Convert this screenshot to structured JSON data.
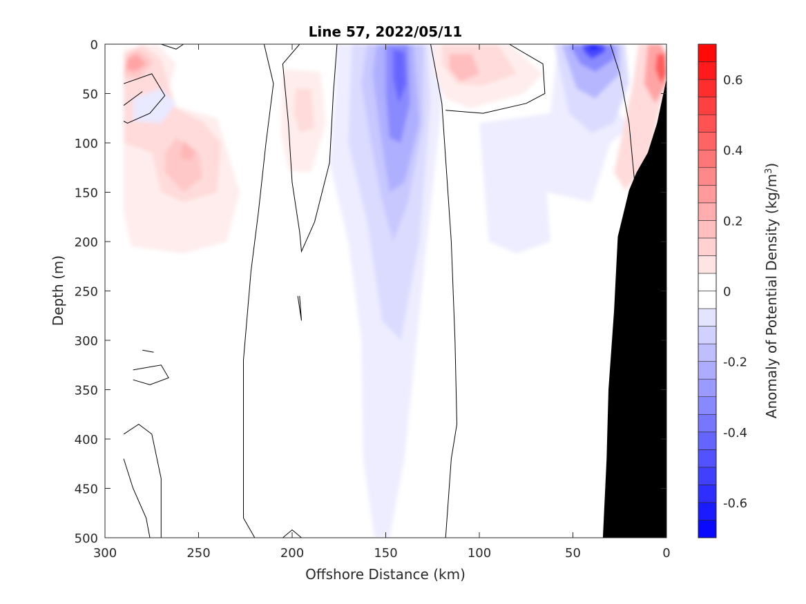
{
  "chart_data": {
    "type": "heatmap",
    "title": "Line 57, 2022/05/11",
    "xlabel": "Offshore Distance (km)",
    "ylabel": "Depth (m)",
    "colorbar_label": "Anomaly of Potential Density (kg/m",
    "colorbar_label_sup": "3",
    "colorbar_label_tail": ")",
    "xlim": [
      300,
      0
    ],
    "ylim": [
      0,
      500
    ],
    "clim": [
      -0.7,
      0.7
    ],
    "contour_step": 0.05,
    "x_ticks": [
      300,
      250,
      200,
      150,
      100,
      50,
      0
    ],
    "x_tick_labels": [
      "300",
      "250",
      "200",
      "150",
      "100",
      "50",
      "0"
    ],
    "y_ticks": [
      0,
      50,
      100,
      150,
      200,
      250,
      300,
      350,
      400,
      450,
      500
    ],
    "y_tick_labels": [
      "0",
      "50",
      "100",
      "150",
      "200",
      "250",
      "300",
      "350",
      "400",
      "450",
      "500"
    ],
    "colorbar_ticks": [
      0.6,
      0.4,
      0.2,
      0,
      -0.2,
      -0.4,
      -0.6
    ],
    "colorbar_tick_labels": [
      "0.6",
      "0.4",
      "0.2",
      "0",
      "-0.2",
      "-0.4",
      "-0.6"
    ],
    "colors": {
      "negative": "#0000ff",
      "positive": "#ff0000",
      "bathymetry": "#000000"
    },
    "x_range_of_data": [
      290,
      0
    ],
    "features": [
      {
        "kind": "anomaly",
        "center_km": 280,
        "center_depth_m": 20,
        "value": 0.3
      },
      {
        "kind": "anomaly",
        "center_km": 252,
        "center_depth_m": 100,
        "value": 0.2
      },
      {
        "kind": "anomaly",
        "center_km": 195,
        "center_depth_m": 60,
        "value": 0.15
      },
      {
        "kind": "anomaly",
        "center_km": 143,
        "center_depth_m": 60,
        "value": -0.35
      },
      {
        "kind": "anomaly",
        "center_km": 145,
        "center_depth_m": 350,
        "value": -0.1
      },
      {
        "kind": "anomaly",
        "center_km": 100,
        "center_depth_m": 30,
        "value": 0.2
      },
      {
        "kind": "anomaly",
        "center_km": 38,
        "center_depth_m": 5,
        "value": -0.6
      },
      {
        "kind": "anomaly",
        "center_km": 60,
        "center_depth_m": 150,
        "value": -0.08
      },
      {
        "kind": "anomaly",
        "center_km": 3,
        "center_depth_m": 20,
        "value": 0.6
      }
    ],
    "bathymetry_outline": [
      {
        "km": 0,
        "depth_m": 35
      },
      {
        "km": 5,
        "depth_m": 80
      },
      {
        "km": 10,
        "depth_m": 110
      },
      {
        "km": 16,
        "depth_m": 130
      },
      {
        "km": 20,
        "depth_m": 148
      },
      {
        "km": 26,
        "depth_m": 195
      },
      {
        "km": 28,
        "depth_m": 270
      },
      {
        "km": 31,
        "depth_m": 350
      },
      {
        "km": 32,
        "depth_m": 420
      },
      {
        "km": 34,
        "depth_m": 500
      },
      {
        "km": 0,
        "depth_m": 500
      }
    ]
  }
}
